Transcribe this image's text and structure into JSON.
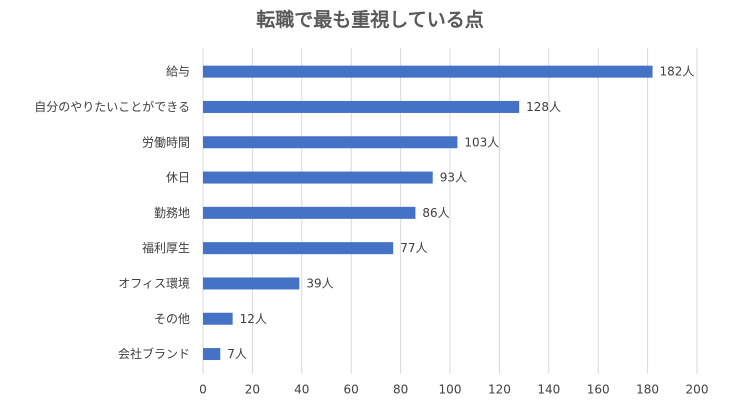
{
  "chart_data": {
    "type": "bar",
    "orientation": "horizontal",
    "title": "転職で最も重視している点",
    "categories": [
      "給与",
      "自分のやりたいことができる",
      "労働時間",
      "休日",
      "勤務地",
      "福利厚生",
      "オフィス環境",
      "その他",
      "会社ブランド"
    ],
    "values": [
      182,
      128,
      103,
      93,
      86,
      77,
      39,
      12,
      7
    ],
    "data_labels": [
      "182人",
      "128人",
      "103人",
      "93人",
      "86人",
      "77人",
      "39人",
      "12人",
      "7人"
    ],
    "xlim": [
      0,
      200
    ],
    "xticks": [
      0,
      20,
      40,
      60,
      80,
      100,
      120,
      140,
      160,
      180,
      200
    ],
    "grid": "vertical",
    "legend": "none",
    "bar_color": "#4472c4"
  }
}
